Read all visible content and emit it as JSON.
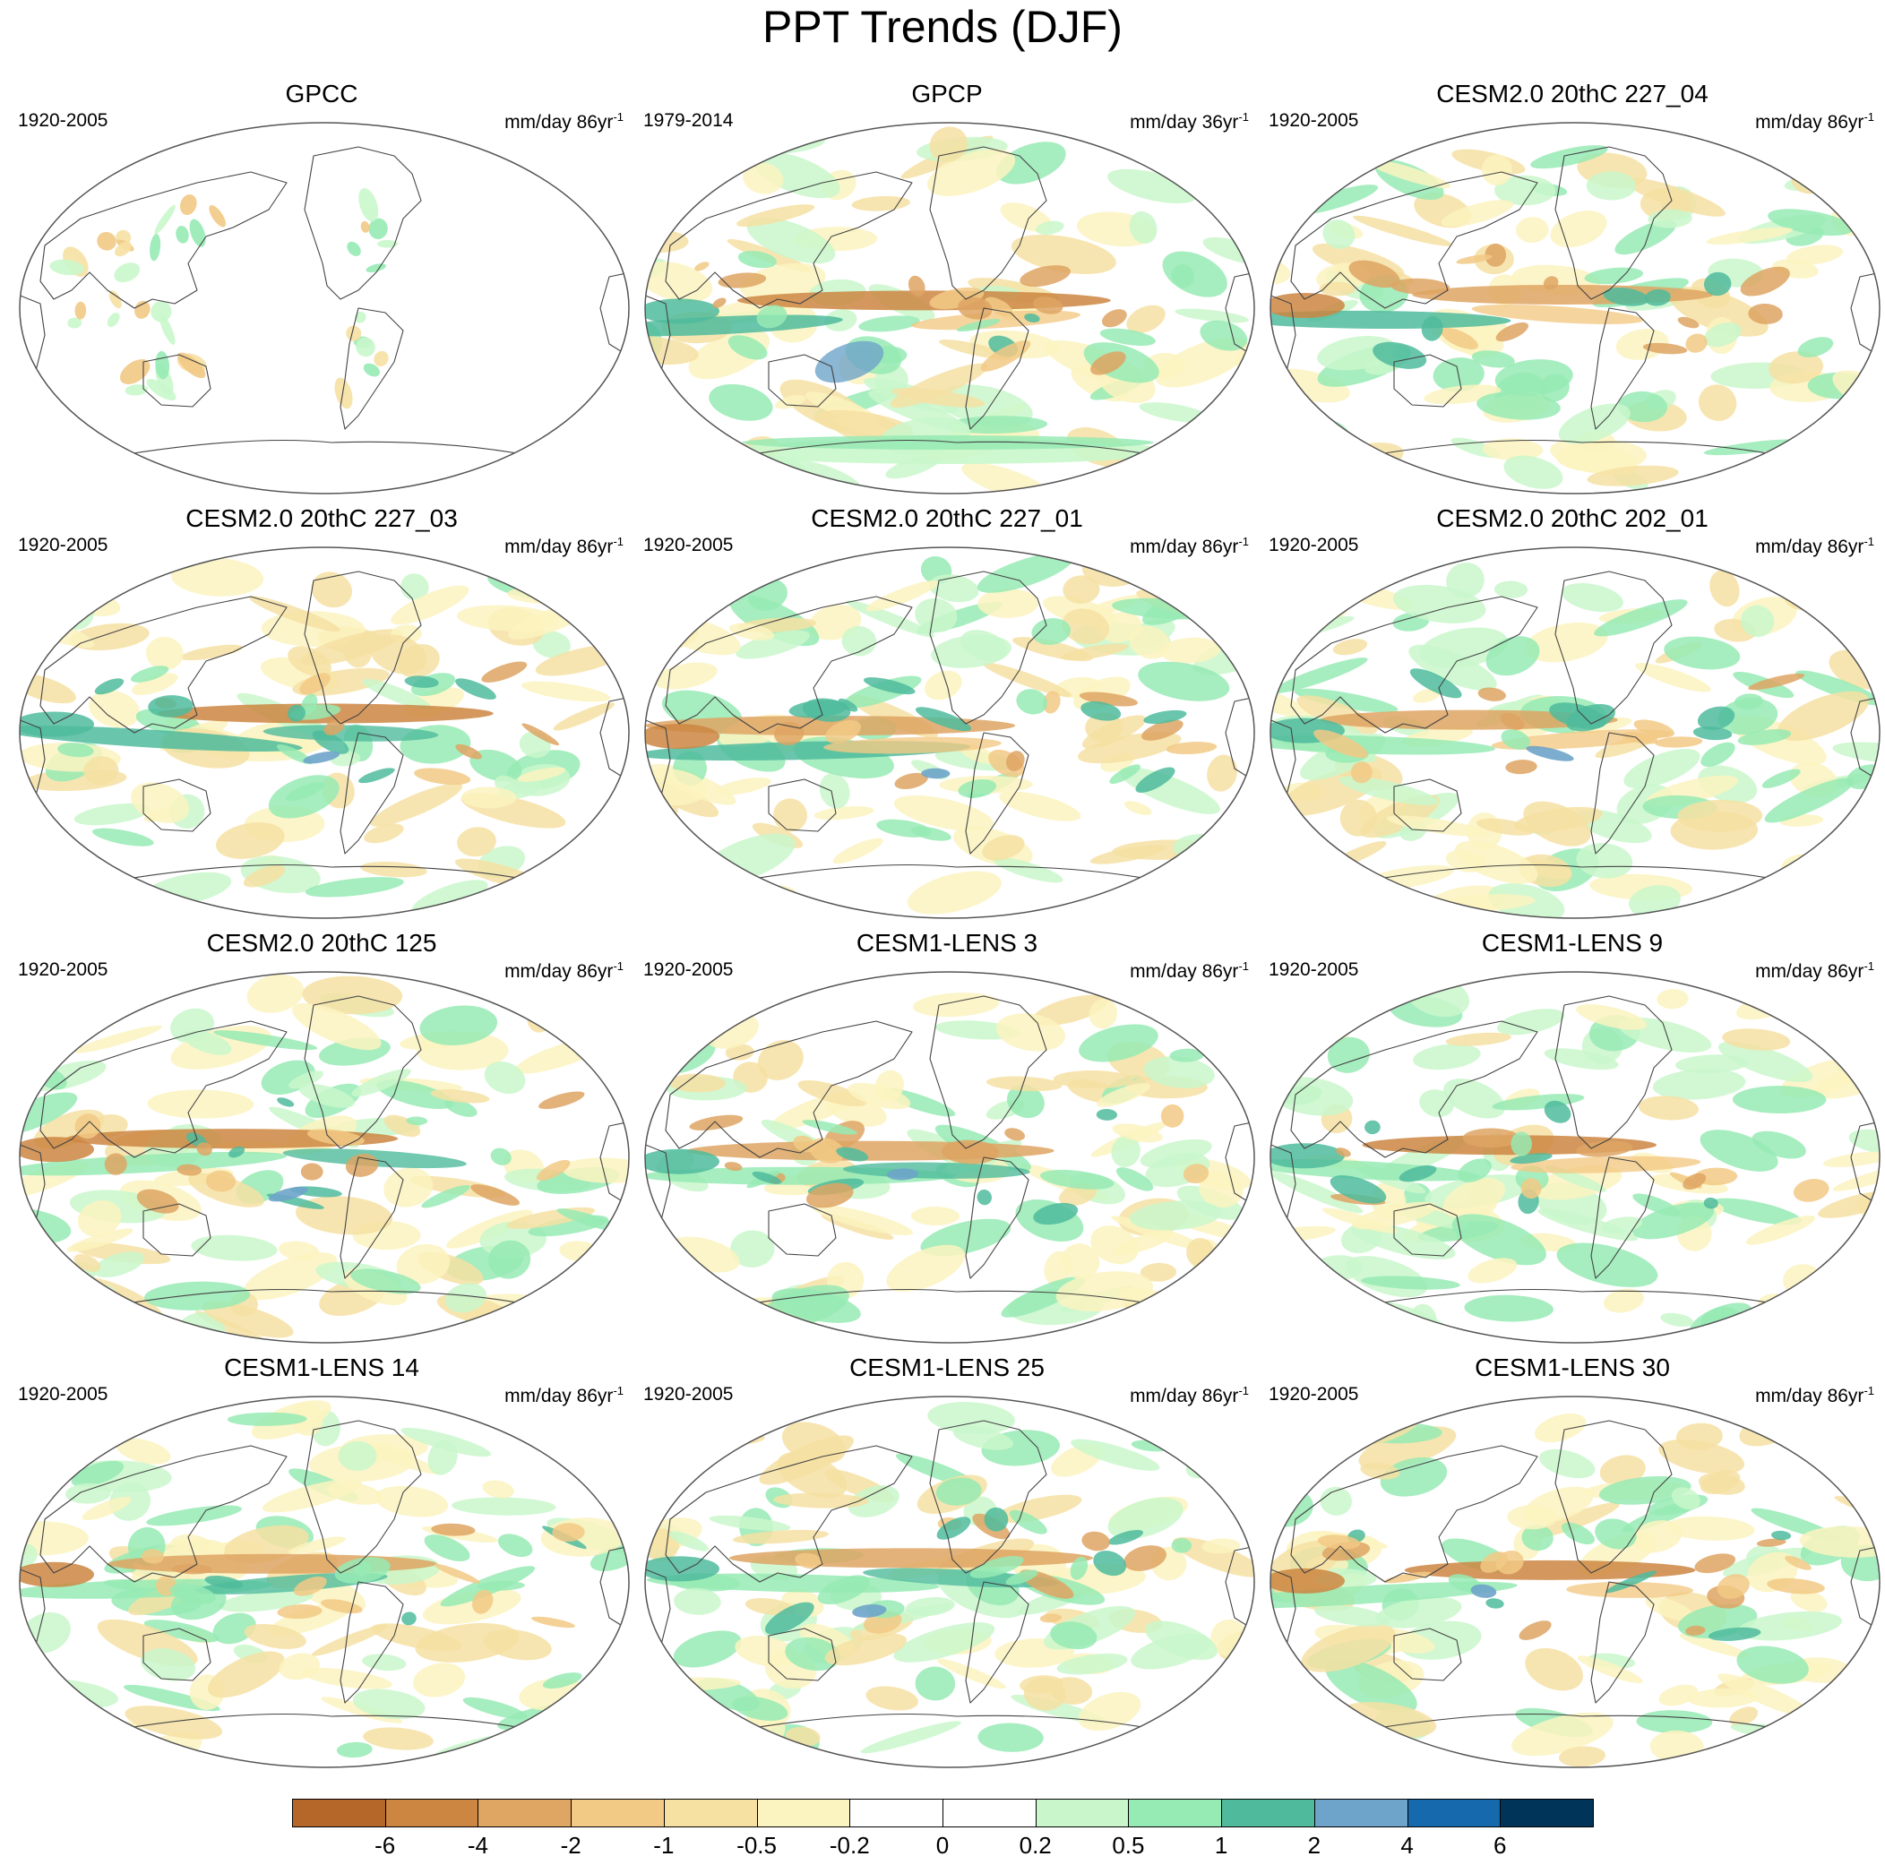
{
  "title": "PPT Trends (DJF)",
  "panels": [
    {
      "name": "GPCC",
      "period": "1920-2005",
      "unit": "mm/day 86yr",
      "unit_sup": "-1",
      "variant": "obs-land"
    },
    {
      "name": "GPCP",
      "period": "1979-2014",
      "unit": "mm/day 36yr",
      "unit_sup": "-1",
      "variant": "obs-global"
    },
    {
      "name": "CESM2.0 20thC 227_04",
      "period": "1920-2005",
      "unit": "mm/day 86yr",
      "unit_sup": "-1",
      "variant": "model"
    },
    {
      "name": "CESM2.0 20thC 227_03",
      "period": "1920-2005",
      "unit": "mm/day 86yr",
      "unit_sup": "-1",
      "variant": "model"
    },
    {
      "name": "CESM2.0 20thC 227_01",
      "period": "1920-2005",
      "unit": "mm/day 86yr",
      "unit_sup": "-1",
      "variant": "model"
    },
    {
      "name": "CESM2.0 20thC 202_01",
      "period": "1920-2005",
      "unit": "mm/day 86yr",
      "unit_sup": "-1",
      "variant": "model"
    },
    {
      "name": "CESM2.0 20thC 125",
      "period": "1920-2005",
      "unit": "mm/day 86yr",
      "unit_sup": "-1",
      "variant": "model"
    },
    {
      "name": "CESM1-LENS 3",
      "period": "1920-2005",
      "unit": "mm/day 86yr",
      "unit_sup": "-1",
      "variant": "model"
    },
    {
      "name": "CESM1-LENS 9",
      "period": "1920-2005",
      "unit": "mm/day 86yr",
      "unit_sup": "-1",
      "variant": "model"
    },
    {
      "name": "CESM1-LENS 14",
      "period": "1920-2005",
      "unit": "mm/day 86yr",
      "unit_sup": "-1",
      "variant": "model"
    },
    {
      "name": "CESM1-LENS 25",
      "period": "1920-2005",
      "unit": "mm/day 86yr",
      "unit_sup": "-1",
      "variant": "model"
    },
    {
      "name": "CESM1-LENS 30",
      "period": "1920-2005",
      "unit": "mm/day 86yr",
      "unit_sup": "-1",
      "variant": "model"
    }
  ],
  "colorbar": {
    "colors": [
      "#b5672a",
      "#cc8642",
      "#dea563",
      "#f2c985",
      "#f6e1a3",
      "#fbf3c0",
      "#ffffff",
      "#ffffff",
      "#c9f7cb",
      "#96eab4",
      "#4fbb9c",
      "#6ea4c9",
      "#1769ad",
      "#003458"
    ],
    "labels": [
      "-6",
      "-4",
      "-2",
      "-1",
      "-0.5",
      "-0.2",
      "0",
      "0.2",
      "0.5",
      "1",
      "2",
      "4",
      "6"
    ]
  }
}
